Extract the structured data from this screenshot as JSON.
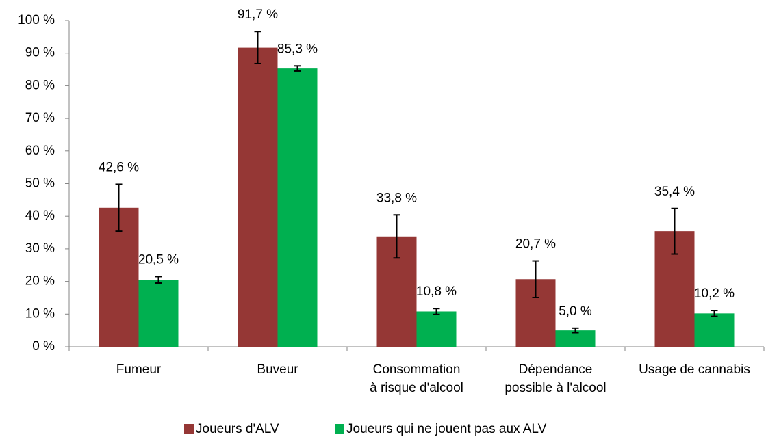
{
  "chart_data": {
    "type": "bar",
    "categories": [
      "Fumeur",
      "Buveur",
      "Consommation\nà risque d'alcool",
      "Dépendance\npossible à l'alcool",
      "Usage de cannabis"
    ],
    "series": [
      {
        "name": "Joueurs d'ALV",
        "color": "#953735",
        "values": [
          42.6,
          91.7,
          33.8,
          20.7,
          35.4
        ],
        "errors": [
          7.2,
          4.9,
          6.6,
          5.6,
          7.0
        ],
        "value_labels": [
          "42,6 %",
          "91,7 %",
          "33,8 %",
          "20,7 %",
          "35,4 %"
        ]
      },
      {
        "name": "Joueurs qui ne jouent pas aux ALV",
        "color": "#00b050",
        "values": [
          20.5,
          85.3,
          10.8,
          5.0,
          10.2
        ],
        "errors": [
          1.0,
          0.8,
          0.9,
          0.7,
          0.9
        ],
        "value_labels": [
          "20,5 %",
          "85,3 %",
          "10,8 %",
          "5,0 %",
          "10,2 %"
        ]
      }
    ],
    "ylim": [
      0,
      100
    ],
    "yticks": [
      {
        "value": 0,
        "label": "0 %"
      },
      {
        "value": 10,
        "label": "10 %"
      },
      {
        "value": 20,
        "label": "20 %"
      },
      {
        "value": 30,
        "label": "30 %"
      },
      {
        "value": 40,
        "label": "40 %"
      },
      {
        "value": 50,
        "label": "50 %"
      },
      {
        "value": 60,
        "label": "60 %"
      },
      {
        "value": 70,
        "label": "70 %"
      },
      {
        "value": 80,
        "label": "80 %"
      },
      {
        "value": 90,
        "label": "90 %"
      },
      {
        "value": 100,
        "label": "100 %"
      }
    ],
    "grid": false,
    "legend": "bottom"
  }
}
